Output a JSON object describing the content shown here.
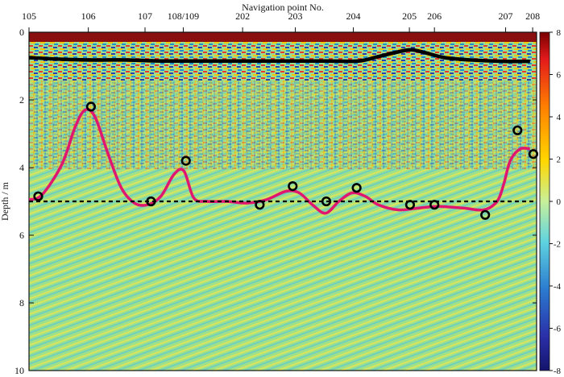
{
  "chart_data": {
    "type": "heatmap",
    "title": "",
    "top_axis_label": "Navigation point No.",
    "ylabel": "Depth / m",
    "ylim": [
      0,
      10
    ],
    "y_ticks": [
      "0",
      "2",
      "4",
      "6",
      "8",
      "10"
    ],
    "navigation_points": [
      {
        "label": "105",
        "x": 0
      },
      {
        "label": "106",
        "x": 9
      },
      {
        "label": "107",
        "x": 17.6
      },
      {
        "label": "108/109",
        "x": 23.4
      },
      {
        "label": "202",
        "x": 32.4
      },
      {
        "label": "203",
        "x": 40.4
      },
      {
        "label": "204",
        "x": 49.2
      },
      {
        "label": "205",
        "x": 57.7
      },
      {
        "label": "206",
        "x": 61.5
      },
      {
        "label": "207",
        "x": 72.3
      },
      {
        "label": "208",
        "x": 76.4
      }
    ],
    "x_range": [
      0,
      77
    ],
    "colorbar": {
      "min": -8,
      "max": 8,
      "ticks": [
        "8",
        "6",
        "4",
        "2",
        "0",
        "-2",
        "-4",
        "-6",
        "-8"
      ],
      "colors": [
        "#7a0000",
        "#e31a1c",
        "#ff7f00",
        "#ffd700",
        "#c8f09a",
        "#5fd3e0",
        "#2b7bcf",
        "#2a2fa8",
        "#14146b"
      ]
    },
    "series": [
      {
        "color": "#000000",
        "style": "solid-thick",
        "points": [
          [
            0,
            0.75
          ],
          [
            5,
            0.8
          ],
          [
            10,
            0.82
          ],
          [
            15,
            0.82
          ],
          [
            20,
            0.85
          ],
          [
            25,
            0.85
          ],
          [
            30,
            0.85
          ],
          [
            35,
            0.85
          ],
          [
            40,
            0.85
          ],
          [
            45,
            0.85
          ],
          [
            50,
            0.85
          ],
          [
            53,
            0.72
          ],
          [
            56,
            0.58
          ],
          [
            58,
            0.52
          ],
          [
            60,
            0.6
          ],
          [
            63,
            0.75
          ],
          [
            67,
            0.82
          ],
          [
            72,
            0.86
          ],
          [
            76,
            0.86
          ]
        ]
      },
      {
        "color": "#e0176f",
        "style": "solid",
        "points": [
          [
            0,
            4.95
          ],
          [
            2,
            4.8
          ],
          [
            5,
            3.9
          ],
          [
            7,
            2.8
          ],
          [
            8.5,
            2.3
          ],
          [
            10,
            2.5
          ],
          [
            12,
            3.6
          ],
          [
            14,
            4.6
          ],
          [
            16,
            5.05
          ],
          [
            18,
            5.1
          ],
          [
            20,
            4.85
          ],
          [
            22,
            4.2
          ],
          [
            23.5,
            4.1
          ],
          [
            25,
            4.9
          ],
          [
            27,
            5.0
          ],
          [
            30,
            5.0
          ],
          [
            33,
            5.05
          ],
          [
            36,
            4.95
          ],
          [
            39,
            4.7
          ],
          [
            41,
            4.75
          ],
          [
            43,
            5.1
          ],
          [
            45,
            5.35
          ],
          [
            47,
            5.0
          ],
          [
            49,
            4.75
          ],
          [
            51,
            4.85
          ],
          [
            53,
            5.1
          ],
          [
            56,
            5.25
          ],
          [
            59,
            5.2
          ],
          [
            62,
            5.15
          ],
          [
            66,
            5.2
          ],
          [
            69,
            5.25
          ],
          [
            71,
            5.0
          ],
          [
            72,
            4.5
          ],
          [
            73,
            3.8
          ],
          [
            74.5,
            3.45
          ],
          [
            76,
            3.45
          ]
        ]
      },
      {
        "color": "#000000",
        "style": "dashed",
        "points": [
          [
            0,
            5.0
          ],
          [
            77,
            5.0
          ]
        ]
      }
    ],
    "markers": [
      [
        1.4,
        4.85
      ],
      [
        9.4,
        2.2
      ],
      [
        18.5,
        5.0
      ],
      [
        23.8,
        3.8
      ],
      [
        35.0,
        5.1
      ],
      [
        40.0,
        4.55
      ],
      [
        45.1,
        5.0
      ],
      [
        49.7,
        4.6
      ],
      [
        57.8,
        5.1
      ],
      [
        61.5,
        5.1
      ],
      [
        69.2,
        5.4
      ],
      [
        74.1,
        2.9
      ],
      [
        76.5,
        3.6
      ]
    ]
  }
}
